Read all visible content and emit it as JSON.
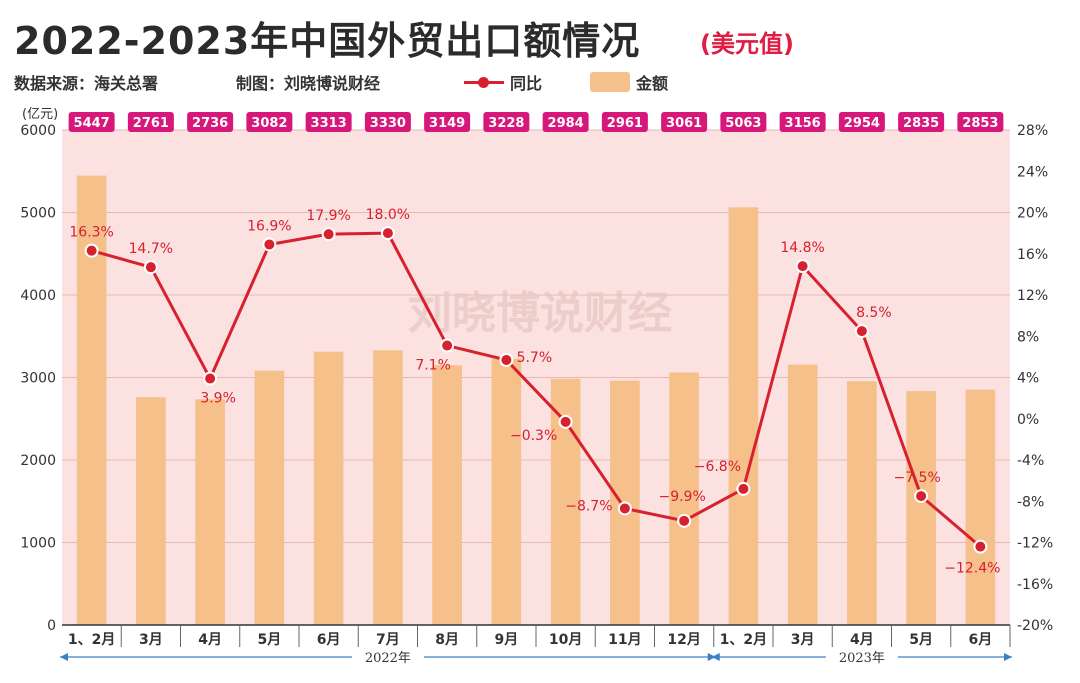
{
  "header": {
    "title": "2022-2023年中国外贸出口额情况",
    "subtitle": "(美元值)",
    "source": "数据来源：海关总署",
    "author": "制图：刘晓博说财经"
  },
  "watermark": "刘晓博说财经",
  "colors": {
    "bar": "#f5c08a",
    "line": "#d7212f",
    "plot_bg": "#fbe2e0",
    "badge": "#d6187b",
    "axis_line": "#3d7fc4"
  },
  "chart_data": {
    "type": "bar",
    "title": "2022-2023年中国外贸出口额情况",
    "unit_left": "(亿元)",
    "categories": [
      "1、2月",
      "3月",
      "4月",
      "5月",
      "6月",
      "7月",
      "8月",
      "9月",
      "10月",
      "11月",
      "12月",
      "1、2月",
      "3月",
      "4月",
      "5月",
      "6月"
    ],
    "bar_labels": [
      "5447",
      "2761",
      "2736",
      "3082",
      "3313",
      "3330",
      "3149",
      "3228",
      "2984",
      "2961",
      "3061",
      "5063",
      "3156",
      "2954",
      "2835",
      "2853"
    ],
    "series": [
      {
        "name": "金额",
        "type": "bar",
        "axis": "left",
        "values": [
          5447,
          2761,
          2736,
          3082,
          3313,
          3330,
          3149,
          3228,
          2984,
          2961,
          3061,
          5063,
          3156,
          2954,
          2835,
          2853
        ]
      },
      {
        "name": "同比",
        "type": "line",
        "axis": "right",
        "values": [
          16.3,
          14.7,
          3.9,
          16.9,
          17.9,
          18.0,
          7.1,
          5.7,
          -0.3,
          -8.7,
          -9.9,
          -6.8,
          14.8,
          8.5,
          -7.5,
          -12.4
        ],
        "labels": [
          "16.3%",
          "14.7%",
          "3.9%",
          "16.9%",
          "17.9%",
          "18.0%",
          "7.1%",
          "5.7%",
          "−0.3%",
          "−8.7%",
          "−9.9%",
          "−6.8%",
          "14.8%",
          "8.5%",
          "−7.5%",
          "−12.4%"
        ]
      }
    ],
    "y_left": {
      "min": 0,
      "max": 6000,
      "ticks": [
        0,
        1000,
        2000,
        3000,
        4000,
        5000,
        6000
      ]
    },
    "y_right": {
      "min": -20,
      "max": 28,
      "ticks": [
        -20,
        -16,
        -12,
        -8,
        -4,
        0,
        4,
        8,
        12,
        16,
        20,
        24,
        28
      ],
      "tick_labels": [
        "-20%",
        "-16%",
        "-12%",
        "-8%",
        "-4%",
        "0%",
        "4%",
        "8%",
        "12%",
        "16%",
        "20%",
        "24%",
        "28%"
      ]
    },
    "year_groups": [
      {
        "label": "2022年",
        "start": 0,
        "end": 10
      },
      {
        "label": "2023年",
        "start": 11,
        "end": 15
      }
    ],
    "legend": [
      {
        "name": "同比",
        "kind": "line"
      },
      {
        "name": "金额",
        "kind": "bar"
      }
    ],
    "grid": true
  }
}
